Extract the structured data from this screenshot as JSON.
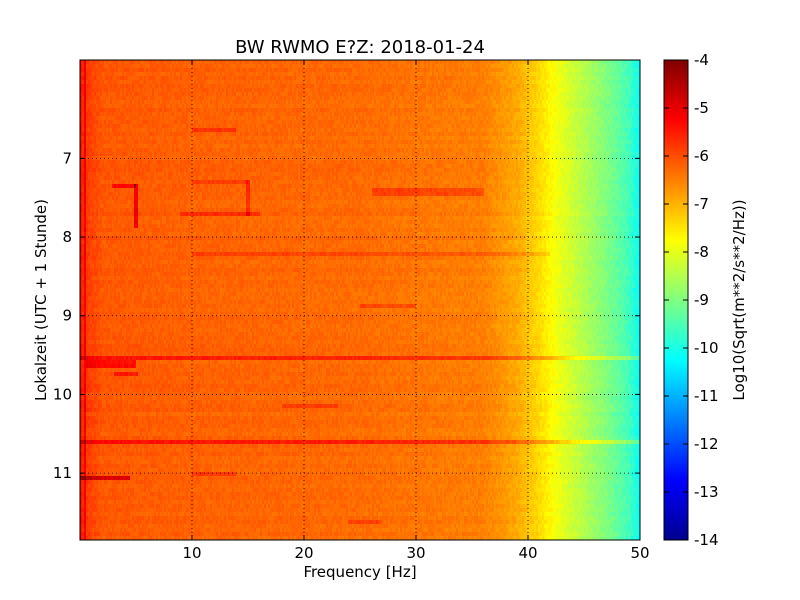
{
  "chart_data": {
    "type": "heatmap",
    "title": "BW RWMO E?Z: 2018-01-24",
    "xlabel": "Frequency [Hz]",
    "ylabel": "Lokalzeit (UTC + 1 Stunde)",
    "colorbar_label": "Log10(Sqrt(m**2/s**2/Hz))",
    "xlim": [
      0,
      50
    ],
    "ylim": [
      5.75,
      11.85
    ],
    "y_inverted": true,
    "x_ticks": [
      "10",
      "20",
      "30",
      "40",
      "50"
    ],
    "x_tick_values": [
      10,
      20,
      30,
      40,
      50
    ],
    "y_ticks": [
      "7",
      "8",
      "9",
      "10",
      "11"
    ],
    "y_tick_values": [
      7,
      8,
      9,
      10,
      11
    ],
    "colorbar_range": [
      -14,
      -4
    ],
    "colorbar_ticks": [
      "-4",
      "-5",
      "-6",
      "-7",
      "-8",
      "-9",
      "-10",
      "-11",
      "-12",
      "-13",
      "-14"
    ],
    "colorbar_tick_values": [
      -4,
      -5,
      -6,
      -7,
      -8,
      -9,
      -10,
      -11,
      -12,
      -13,
      -14
    ],
    "colormap": "jet",
    "grid": true,
    "frequency_profile": [
      {
        "f": 0,
        "v": -5.4
      },
      {
        "f": 0.5,
        "v": -5.8
      },
      {
        "f": 2,
        "v": -6.1
      },
      {
        "f": 10,
        "v": -6.2
      },
      {
        "f": 25,
        "v": -6.3
      },
      {
        "f": 36,
        "v": -6.5
      },
      {
        "f": 39,
        "v": -6.9
      },
      {
        "f": 41,
        "v": -7.4
      },
      {
        "f": 43,
        "v": -8.0
      },
      {
        "f": 45,
        "v": -8.5
      },
      {
        "f": 47,
        "v": -9.0
      },
      {
        "f": 49,
        "v": -9.6
      },
      {
        "f": 50,
        "v": -10.2
      }
    ],
    "features": [
      {
        "f0": 0,
        "f1": 50,
        "t0": 9.53,
        "t1": 9.58,
        "delta": 0.7
      },
      {
        "f0": 0,
        "f1": 50,
        "t0": 10.6,
        "t1": 10.65,
        "delta": 0.8
      },
      {
        "f0": 0,
        "f1": 4.5,
        "t0": 11.03,
        "t1": 11.1,
        "delta": 1.2
      },
      {
        "f0": 0.3,
        "f1": 0.6,
        "t0": 5.75,
        "t1": 11.85,
        "delta": 0.6
      },
      {
        "f0": 4.8,
        "f1": 5.2,
        "t0": 7.35,
        "t1": 7.9,
        "delta": 1.0
      },
      {
        "f0": 2.8,
        "f1": 5.0,
        "t0": 7.35,
        "t1": 7.4,
        "delta": 0.8
      },
      {
        "f0": 0.5,
        "f1": 5.0,
        "t0": 9.58,
        "t1": 9.67,
        "delta": 0.8
      },
      {
        "f0": 3,
        "f1": 5.2,
        "t0": 9.7,
        "t1": 9.78,
        "delta": 0.6
      },
      {
        "f0": 10,
        "f1": 14,
        "t0": 6.6,
        "t1": 6.65,
        "delta": 0.5
      },
      {
        "f0": 10,
        "f1": 15,
        "t0": 7.3,
        "t1": 7.34,
        "delta": 0.4
      },
      {
        "f0": 9,
        "f1": 16,
        "t0": 7.68,
        "t1": 7.72,
        "delta": 0.5
      },
      {
        "f0": 14.9,
        "f1": 15.2,
        "t0": 7.3,
        "t1": 7.75,
        "delta": 0.6
      },
      {
        "f0": 26,
        "f1": 36,
        "t0": 7.4,
        "t1": 7.48,
        "delta": 0.5
      },
      {
        "f0": 10,
        "f1": 42,
        "t0": 8.18,
        "t1": 8.22,
        "delta": 0.35
      },
      {
        "f0": 25,
        "f1": 30,
        "t0": 8.87,
        "t1": 8.92,
        "delta": 0.4
      },
      {
        "f0": 18,
        "f1": 23,
        "t0": 10.12,
        "t1": 10.16,
        "delta": 0.4
      },
      {
        "f0": 10,
        "f1": 14,
        "t0": 10.98,
        "t1": 11.02,
        "delta": 0.4
      },
      {
        "f0": 24,
        "f1": 27,
        "t0": 11.6,
        "t1": 11.65,
        "delta": 0.4
      }
    ]
  }
}
